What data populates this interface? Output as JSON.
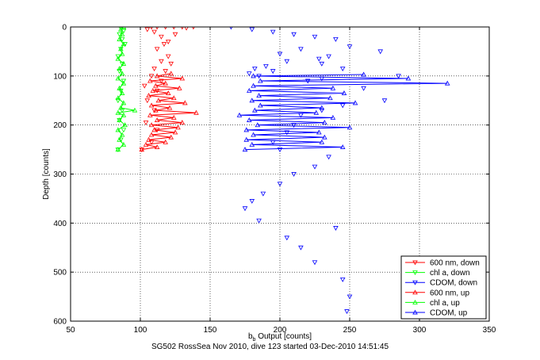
{
  "caption": "SG502 RossSea Nov 2010, dive 123 started 03-Dec-2010 14:51:45",
  "chart_data": {
    "type": "scatter",
    "title": "",
    "xlabel_main": "b",
    "xlabel_sub": "b",
    "xlabel_rest": " Output [counts]",
    "ylabel": "Depth [counts]",
    "xlim": [
      50,
      350
    ],
    "ylim": [
      0,
      600
    ],
    "y_reversed": true,
    "grid": true,
    "grid_style": "dotted",
    "xticks": [
      50,
      100,
      150,
      200,
      250,
      300,
      350
    ],
    "yticks": [
      0,
      100,
      200,
      300,
      400,
      500,
      600
    ],
    "legend_position": "bottom-right",
    "series": [
      {
        "name": "600 nm, down",
        "color": "#ff0000",
        "marker": "triangle-down",
        "connected": false,
        "points": [
          [
            108,
            0
          ],
          [
            112,
            0
          ],
          [
            118,
            0
          ],
          [
            124,
            0
          ],
          [
            130,
            0
          ],
          [
            133,
            2
          ],
          [
            138,
            0
          ],
          [
            105,
            5
          ],
          [
            110,
            10
          ],
          [
            115,
            20
          ],
          [
            120,
            30
          ],
          [
            117,
            35
          ],
          [
            125,
            15
          ],
          [
            112,
            45
          ],
          [
            120,
            60
          ],
          [
            115,
            70
          ],
          [
            122,
            75
          ],
          [
            110,
            85
          ],
          [
            118,
            90
          ],
          [
            108,
            100
          ],
          [
            115,
            110
          ],
          [
            103,
            120
          ],
          [
            112,
            130
          ],
          [
            105,
            150
          ],
          [
            110,
            170
          ],
          [
            104,
            195
          ],
          [
            112,
            210
          ],
          [
            108,
            235
          ],
          [
            101,
            250
          ]
        ]
      },
      {
        "name": "chl a, down",
        "color": "#00ff00",
        "marker": "triangle-down",
        "connected": false,
        "points": [
          [
            86,
            2
          ],
          [
            88,
            8
          ],
          [
            85,
            15
          ],
          [
            87,
            25
          ],
          [
            89,
            35
          ],
          [
            86,
            45
          ],
          [
            84,
            60
          ],
          [
            87,
            75
          ],
          [
            85,
            90
          ],
          [
            88,
            110
          ],
          [
            86,
            130
          ],
          [
            84,
            150
          ],
          [
            87,
            170
          ],
          [
            85,
            190
          ],
          [
            88,
            210
          ],
          [
            86,
            230
          ],
          [
            84,
            250
          ]
        ]
      },
      {
        "name": "CDOM, down",
        "color": "#0000ff",
        "marker": "triangle-down",
        "connected": false,
        "points": [
          [
            165,
            0
          ],
          [
            180,
            5
          ],
          [
            195,
            10
          ],
          [
            210,
            15
          ],
          [
            225,
            20
          ],
          [
            240,
            25
          ],
          [
            250,
            40
          ],
          [
            272,
            50
          ],
          [
            235,
            60
          ],
          [
            228,
            65
          ],
          [
            215,
            45
          ],
          [
            200,
            55
          ],
          [
            190,
            80
          ],
          [
            182,
            85
          ],
          [
            245,
            85
          ],
          [
            230,
            75
          ],
          [
            205,
            70
          ],
          [
            195,
            90
          ],
          [
            178,
            95
          ],
          [
            185,
            100
          ],
          [
            285,
            100
          ],
          [
            230,
            105
          ],
          [
            220,
            110
          ],
          [
            260,
            125
          ],
          [
            275,
            150
          ],
          [
            245,
            160
          ],
          [
            230,
            170
          ],
          [
            215,
            180
          ],
          [
            210,
            200
          ],
          [
            205,
            215
          ],
          [
            195,
            235
          ],
          [
            200,
            250
          ],
          [
            235,
            265
          ],
          [
            225,
            285
          ],
          [
            210,
            300
          ],
          [
            200,
            320
          ],
          [
            188,
            340
          ],
          [
            180,
            355
          ],
          [
            175,
            370
          ],
          [
            185,
            395
          ],
          [
            240,
            410
          ],
          [
            205,
            430
          ],
          [
            215,
            450
          ],
          [
            225,
            480
          ],
          [
            245,
            515
          ],
          [
            250,
            550
          ],
          [
            248,
            580
          ]
        ]
      },
      {
        "name": "600 nm, up",
        "color": "#ff0000",
        "marker": "triangle-up",
        "connected": true,
        "points": [
          [
            101,
            250
          ],
          [
            112,
            245
          ],
          [
            104,
            240
          ],
          [
            118,
            235
          ],
          [
            106,
            230
          ],
          [
            122,
            225
          ],
          [
            108,
            220
          ],
          [
            125,
            215
          ],
          [
            110,
            210
          ],
          [
            127,
            205
          ],
          [
            108,
            200
          ],
          [
            130,
            195
          ],
          [
            112,
            190
          ],
          [
            124,
            185
          ],
          [
            107,
            180
          ],
          [
            140,
            175
          ],
          [
            111,
            170
          ],
          [
            121,
            165
          ],
          [
            108,
            160
          ],
          [
            132,
            155
          ],
          [
            113,
            150
          ],
          [
            124,
            145
          ],
          [
            106,
            140
          ],
          [
            120,
            135
          ],
          [
            109,
            130
          ],
          [
            128,
            125
          ],
          [
            111,
            120
          ],
          [
            118,
            115
          ],
          [
            107,
            110
          ],
          [
            130,
            105
          ],
          [
            112,
            100
          ],
          [
            122,
            95
          ]
        ]
      },
      {
        "name": "chl a, up",
        "color": "#00ff00",
        "marker": "triangle-up",
        "connected": true,
        "points": [
          [
            84,
            250
          ],
          [
            88,
            240
          ],
          [
            85,
            230
          ],
          [
            87,
            220
          ],
          [
            84,
            210
          ],
          [
            89,
            200
          ],
          [
            85,
            190
          ],
          [
            88,
            180
          ],
          [
            84,
            175
          ],
          [
            96,
            170
          ],
          [
            86,
            165
          ],
          [
            88,
            155
          ],
          [
            84,
            145
          ],
          [
            87,
            135
          ],
          [
            85,
            125
          ],
          [
            88,
            115
          ],
          [
            84,
            105
          ],
          [
            87,
            95
          ],
          [
            85,
            85
          ],
          [
            88,
            75
          ],
          [
            84,
            65
          ],
          [
            87,
            55
          ],
          [
            86,
            45
          ],
          [
            88,
            35
          ],
          [
            85,
            25
          ],
          [
            87,
            15
          ],
          [
            86,
            5
          ],
          [
            88,
            0
          ]
        ]
      },
      {
        "name": "CDOM, up",
        "color": "#0000ff",
        "marker": "triangle-up",
        "connected": true,
        "points": [
          [
            175,
            250
          ],
          [
            245,
            245
          ],
          [
            180,
            240
          ],
          [
            230,
            235
          ],
          [
            176,
            230
          ],
          [
            232,
            225
          ],
          [
            181,
            220
          ],
          [
            228,
            215
          ],
          [
            176,
            210
          ],
          [
            250,
            205
          ],
          [
            184,
            200
          ],
          [
            232,
            195
          ],
          [
            178,
            190
          ],
          [
            238,
            185
          ],
          [
            171,
            180
          ],
          [
            226,
            175
          ],
          [
            182,
            170
          ],
          [
            230,
            165
          ],
          [
            186,
            160
          ],
          [
            254,
            155
          ],
          [
            180,
            150
          ],
          [
            236,
            145
          ],
          [
            185,
            140
          ],
          [
            246,
            135
          ],
          [
            178,
            130
          ],
          [
            238,
            125
          ],
          [
            181,
            120
          ],
          [
            320,
            115
          ],
          [
            186,
            110
          ],
          [
            292,
            105
          ],
          [
            181,
            100
          ],
          [
            260,
            97
          ]
        ]
      }
    ]
  }
}
